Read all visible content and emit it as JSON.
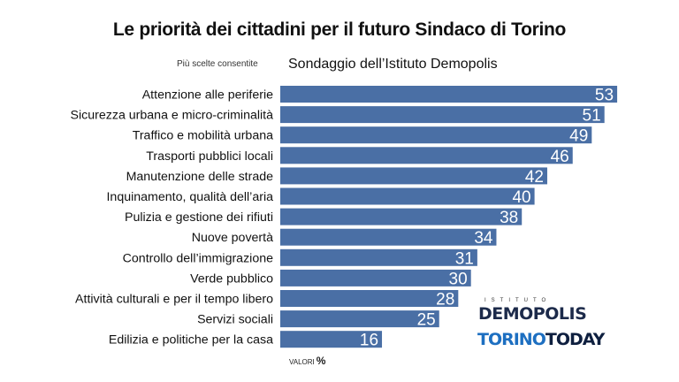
{
  "title": "Le priorità dei cittadini per il futuro Sindaco di Torino",
  "subtitle_left": "Più scelte consentite",
  "subtitle_right": "Sondaggio dell’Istituto Demopolis",
  "footnote": {
    "text": "VALORI",
    "unit": "%"
  },
  "logos": {
    "istituto": "ISTITUTO",
    "demopolis": "DEMOPOLIS",
    "torino": "TORINO",
    "today": "TODAY"
  },
  "colors": {
    "bar": "#4a6fa5",
    "bar_label": "#ffffff",
    "text": "#111111"
  },
  "chart_data": {
    "type": "bar",
    "orientation": "horizontal",
    "categories": [
      "Attenzione alle periferie",
      "Sicurezza urbana e micro-criminalità",
      "Traffico e mobilità urbana",
      "Trasporti pubblici locali",
      "Manutenzione delle strade",
      "Inquinamento, qualità dell’aria",
      "Pulizia e gestione dei rifiuti",
      "Nuove povertà",
      "Controllo dell’immigrazione",
      "Verde pubblico",
      "Attività culturali e per il tempo libero",
      "Servizi sociali",
      "Edilizia e politiche per la casa"
    ],
    "values": [
      53,
      51,
      49,
      46,
      42,
      40,
      38,
      34,
      31,
      30,
      28,
      25,
      16
    ],
    "xlim": [
      0,
      55
    ],
    "grid": false,
    "legend": "none"
  }
}
